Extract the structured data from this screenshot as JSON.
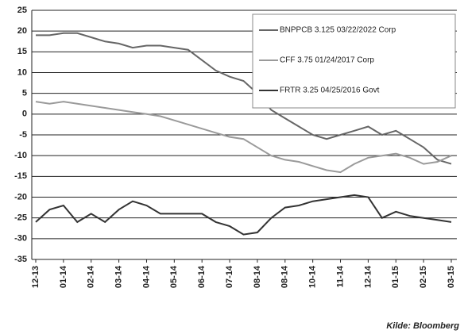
{
  "chart_data": {
    "type": "line",
    "source": "Kilde: Bloomberg",
    "categories": [
      "12-13",
      null,
      "01-14",
      null,
      "02-14",
      null,
      "03-14",
      null,
      "04-14",
      null,
      "05-14",
      null,
      "06-14",
      null,
      "07-14",
      null,
      "08-14",
      null,
      "08-14",
      null,
      "10-14",
      null,
      "11-14",
      null,
      "12-14",
      null,
      "01-15",
      null,
      "02-15",
      null,
      "03-15"
    ],
    "series": [
      {
        "name": "BNPPCB 3.125 03/22/2022 Corp",
        "color": "#666666",
        "values": [
          19,
          19,
          19.5,
          19.5,
          18.5,
          17.5,
          17,
          16,
          16.5,
          16.5,
          16,
          15.5,
          13,
          10.5,
          9,
          8,
          5,
          1,
          -1,
          -3,
          -5,
          -6,
          -5,
          -4,
          -3,
          -5,
          -4,
          -6,
          -8,
          -11,
          -12
        ]
      },
      {
        "name": "CFF 3.75 01/24/2017 Corp",
        "color": "#9a9a9a",
        "values": [
          3,
          2.5,
          3,
          2.5,
          2,
          1.5,
          1,
          0.5,
          0,
          -0.5,
          -1.5,
          -2.5,
          -3.5,
          -4.5,
          -5.5,
          -6,
          -8,
          -10,
          -11,
          -11.5,
          -12.5,
          -13.5,
          -14,
          -12,
          -10.5,
          -10,
          -9.5,
          -10.5,
          -12,
          -11.5,
          -10
        ]
      },
      {
        "name": "FRTR 3.25 04/25/2016 Govt",
        "color": "#333333",
        "values": [
          -26,
          -23,
          -22,
          -26,
          -24,
          -26,
          -23,
          -21,
          -22,
          -24,
          -24,
          -24,
          -24,
          -26,
          -27,
          -29,
          -28.5,
          -25,
          -22.5,
          -22,
          -21,
          -20.5,
          -20,
          -19.5,
          -20,
          -25,
          -23.5,
          -24.5,
          -25,
          -25.5,
          -26
        ]
      }
    ],
    "ylim": [
      -35,
      25
    ],
    "yticks": [
      -35,
      -30,
      -25,
      -20,
      -15,
      -10,
      -5,
      0,
      5,
      10,
      15,
      20,
      25
    ],
    "grid": true
  }
}
